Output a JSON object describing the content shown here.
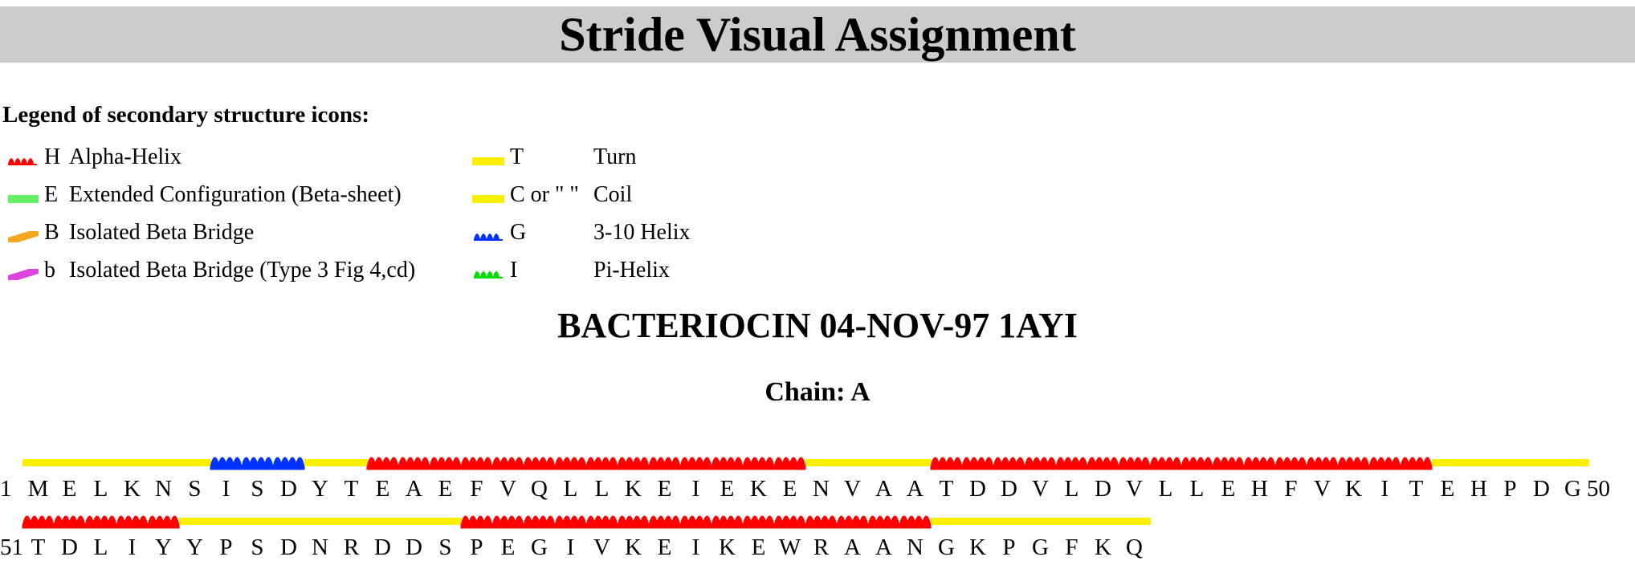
{
  "page": {
    "title": "Stride Visual Assignment"
  },
  "legend": {
    "heading": "Legend of secondary structure icons:",
    "items": [
      {
        "code": "H",
        "label": "Alpha-Helix",
        "icon": "alpha-helix-icon",
        "color": "#ff0000"
      },
      {
        "code": "E",
        "label": "Extended Configuration (Beta-sheet)",
        "icon": "extended-icon",
        "color": "#66ee66"
      },
      {
        "code": "B",
        "label": "Isolated Beta Bridge",
        "icon": "beta-bridge-icon",
        "color": "#f5a623"
      },
      {
        "code": "b",
        "label": "Isolated Beta Bridge (Type 3 Fig 4,cd)",
        "icon": "beta-bridge-type3-icon",
        "color": "#dd44dd"
      },
      {
        "code": "T",
        "label": "Turn",
        "icon": "turn-icon",
        "color": "#ffee00"
      },
      {
        "code": "C or \" \"",
        "label": "Coil",
        "icon": "coil-icon",
        "color": "#ffee00"
      },
      {
        "code": "G",
        "label": "3-10 Helix",
        "icon": "helix-310-icon",
        "color": "#0033ff"
      },
      {
        "code": "I",
        "label": "Pi-Helix",
        "icon": "pi-helix-icon",
        "color": "#00dd00"
      }
    ]
  },
  "protein": {
    "title": "BACTERIOCIN 04-NOV-97 1AYI"
  },
  "chain": {
    "title": "Chain: A"
  },
  "rows": [
    {
      "start": "1",
      "end": "50",
      "sequence": [
        "M",
        "E",
        "L",
        "K",
        "N",
        "S",
        "I",
        "S",
        "D",
        "Y",
        "T",
        "E",
        "A",
        "E",
        "F",
        "V",
        "Q",
        "L",
        "L",
        "K",
        "E",
        "I",
        "E",
        "K",
        "E",
        "N",
        "V",
        "A",
        "A",
        "T",
        "D",
        "D",
        "V",
        "L",
        "D",
        "V",
        "L",
        "L",
        "E",
        "H",
        "F",
        "V",
        "K",
        "I",
        "T",
        "E",
        "H",
        "P",
        "D",
        "G"
      ],
      "structure": "CCCCCCGGGCCHHHHHHHHHHHHHHCCCCHHHHHHHHHHHHHHHHCCCCC"
    },
    {
      "start": "51",
      "end": "",
      "sequence": [
        "T",
        "D",
        "L",
        "I",
        "Y",
        "Y",
        "P",
        "S",
        "D",
        "N",
        "R",
        "D",
        "D",
        "S",
        "P",
        "E",
        "G",
        "I",
        "V",
        "K",
        "E",
        "I",
        "K",
        "E",
        "W",
        "R",
        "A",
        "A",
        "N",
        "G",
        "K",
        "P",
        "G",
        "F",
        "K",
        "Q"
      ],
      "structure": "HHHHHCCCCCCCCCHHHHHHHHHHHHHHHCCCCCCC"
    }
  ],
  "colors": {
    "helix": "#ff0000",
    "g310": "#0033ff",
    "coil": "#ffee00",
    "header_bg": "#cccccc"
  }
}
